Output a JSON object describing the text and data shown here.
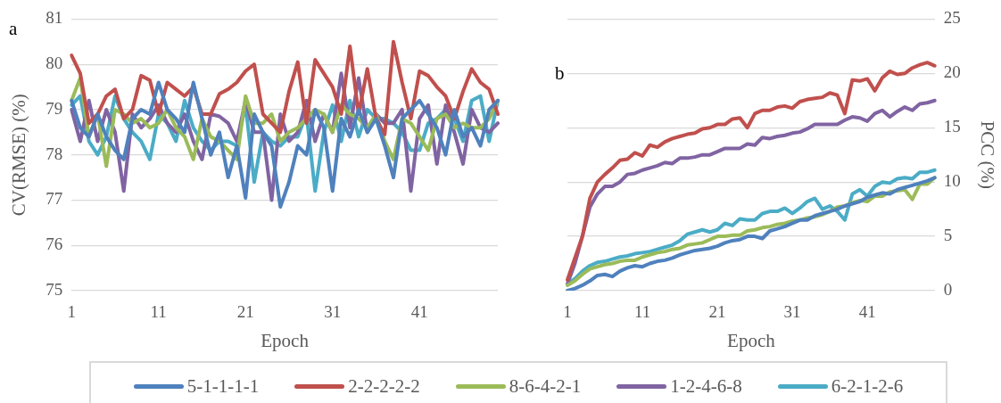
{
  "chart_data": [
    {
      "type": "line",
      "title": "a",
      "xlabel": "Epoch",
      "ylabel": "CV(RMSE) (%)",
      "categories": [
        "1",
        null,
        null,
        null,
        null,
        null,
        null,
        null,
        null,
        null,
        "11",
        null,
        null,
        null,
        null,
        null,
        null,
        null,
        null,
        null,
        "21",
        null,
        null,
        null,
        null,
        null,
        null,
        null,
        null,
        null,
        "31",
        null,
        null,
        null,
        null,
        null,
        null,
        null,
        null,
        null,
        "41",
        null,
        null,
        null,
        null,
        null,
        null,
        null,
        null,
        null
      ],
      "ylim": [
        75,
        81
      ],
      "yticks": [
        75,
        76,
        77,
        78,
        79,
        80,
        81
      ],
      "grid": "y",
      "legend": "bottom",
      "marker": "none",
      "line_style": "solid",
      "series": [
        {
          "name": "5-1-1-1-1",
          "color": "#4f81bd",
          "values": [
            79.2,
            78.6,
            78.4,
            78.9,
            78.4,
            78.1,
            77.9,
            78.8,
            79.0,
            78.9,
            79.6,
            79.0,
            78.8,
            78.5,
            79.6,
            78.8,
            78.0,
            78.5,
            77.5,
            78.2,
            77.05,
            78.9,
            78.5,
            78.2,
            76.85,
            77.4,
            78.2,
            78.0,
            79.0,
            78.6,
            77.2,
            78.8,
            78.4,
            79.0,
            78.5,
            78.8,
            78.2,
            77.5,
            78.8,
            79.0,
            79.2,
            78.9,
            78.6,
            78.0,
            79.0,
            78.4,
            78.6,
            78.2,
            79.0,
            79.2
          ]
        },
        {
          "name": "2-2-2-2-2",
          "color": "#c0504d",
          "values": [
            80.2,
            79.8,
            78.7,
            78.9,
            79.3,
            79.45,
            78.8,
            79.0,
            79.75,
            79.65,
            78.9,
            79.6,
            79.45,
            79.3,
            79.5,
            78.9,
            78.9,
            79.35,
            79.45,
            79.6,
            79.85,
            80.0,
            78.9,
            78.7,
            78.5,
            79.4,
            80.05,
            78.7,
            80.1,
            79.8,
            79.5,
            78.9,
            80.4,
            78.9,
            79.9,
            78.8,
            78.45,
            80.5,
            79.6,
            78.8,
            79.85,
            79.75,
            79.5,
            79.3,
            78.8,
            79.4,
            79.9,
            79.6,
            79.45,
            78.9
          ]
        },
        {
          "name": "8-6-4-2-1",
          "color": "#9bbb59",
          "values": [
            79.2,
            79.7,
            78.4,
            78.9,
            77.75,
            79.0,
            78.9,
            78.7,
            78.8,
            78.6,
            78.7,
            79.0,
            78.6,
            78.4,
            77.9,
            78.8,
            78.4,
            78.3,
            78.1,
            77.9,
            79.3,
            78.7,
            78.7,
            78.9,
            78.3,
            78.5,
            78.6,
            78.8,
            79.0,
            78.9,
            78.5,
            79.1,
            78.9,
            78.8,
            78.6,
            78.9,
            78.3,
            77.9,
            78.8,
            78.7,
            78.4,
            78.1,
            78.8,
            78.9,
            78.6,
            78.7,
            78.6,
            78.6,
            78.8,
            79.2
          ]
        },
        {
          "name": "1-2-4-6-8",
          "color": "#8064a2",
          "values": [
            79.0,
            78.3,
            79.2,
            78.3,
            79.0,
            78.5,
            77.2,
            78.9,
            78.6,
            78.8,
            79.1,
            78.7,
            78.5,
            78.9,
            78.3,
            77.9,
            78.9,
            78.85,
            78.7,
            78.3,
            79.2,
            78.5,
            78.5,
            77.0,
            78.9,
            78.3,
            78.5,
            79.2,
            78.3,
            78.9,
            78.5,
            79.8,
            78.6,
            79.7,
            78.5,
            78.9,
            78.7,
            78.7,
            79.0,
            77.2,
            78.8,
            79.1,
            77.8,
            79.1,
            78.5,
            77.8,
            79.0,
            78.6,
            78.5,
            78.7
          ]
        },
        {
          "name": "6-2-1-2-6",
          "color": "#4bacc6",
          "values": [
            79.1,
            79.3,
            78.3,
            78.0,
            78.4,
            79.3,
            78.8,
            78.5,
            78.3,
            77.9,
            78.9,
            78.7,
            78.3,
            79.2,
            78.6,
            78.3,
            78.1,
            78.3,
            78.3,
            78.2,
            79.1,
            77.4,
            78.5,
            78.3,
            78.2,
            78.4,
            78.4,
            78.9,
            77.2,
            78.5,
            79.1,
            78.3,
            79.2,
            78.4,
            79.0,
            78.8,
            78.8,
            78.7,
            78.5,
            78.1,
            78.1,
            78.7,
            78.8,
            79.0,
            78.8,
            78.3,
            79.2,
            79.3,
            78.3,
            79.2
          ]
        }
      ]
    },
    {
      "type": "line",
      "title": "b",
      "xlabel": "Epoch",
      "y2label": "PCC (%)",
      "categories": [
        "1",
        null,
        null,
        null,
        null,
        null,
        null,
        null,
        null,
        null,
        "11",
        null,
        null,
        null,
        null,
        null,
        null,
        null,
        null,
        null,
        "21",
        null,
        null,
        null,
        null,
        null,
        null,
        null,
        null,
        null,
        "31",
        null,
        null,
        null,
        null,
        null,
        null,
        null,
        null,
        null,
        "41",
        null,
        null,
        null,
        null,
        null,
        null,
        null,
        null,
        null
      ],
      "y2lim": [
        0,
        25
      ],
      "y2ticks": [
        0,
        5,
        10,
        15,
        20,
        25
      ],
      "grid": "y",
      "marker": "none",
      "line_style": "solid",
      "series": [
        {
          "color": "#4f81bd",
          "axis": "y2",
          "values": [
            0.0,
            0.2,
            0.5,
            0.9,
            1.4,
            1.5,
            1.3,
            1.8,
            2.1,
            2.3,
            2.2,
            2.5,
            2.7,
            2.8,
            3.0,
            3.3,
            3.5,
            3.7,
            3.8,
            3.9,
            4.1,
            4.4,
            4.6,
            4.7,
            5.0,
            5.0,
            4.8,
            5.5,
            5.7,
            5.9,
            6.2,
            6.5,
            6.5,
            6.9,
            7.1,
            7.3,
            7.5,
            7.8,
            8.0,
            8.2,
            8.6,
            8.8,
            9.0,
            8.9,
            9.3,
            9.5,
            9.7,
            9.9,
            10.1,
            10.4
          ]
        },
        {
          "color": "#c0504d",
          "axis": "y2",
          "values": [
            1.0,
            3.0,
            5.0,
            8.5,
            10.0,
            10.7,
            11.3,
            12.0,
            12.1,
            12.7,
            12.4,
            13.4,
            13.2,
            13.7,
            14.0,
            14.2,
            14.4,
            14.5,
            14.9,
            15.0,
            15.3,
            15.3,
            15.8,
            15.9,
            15.0,
            16.3,
            16.6,
            16.6,
            16.9,
            17.0,
            16.8,
            17.4,
            17.6,
            17.7,
            17.8,
            18.2,
            18.0,
            16.3,
            19.4,
            19.3,
            19.5,
            18.4,
            19.6,
            20.2,
            19.9,
            20.0,
            20.5,
            20.8,
            21.0,
            20.7
          ]
        },
        {
          "color": "#9bbb59",
          "axis": "y2",
          "values": [
            0.5,
            0.9,
            1.5,
            2.0,
            2.2,
            2.4,
            2.5,
            2.7,
            2.8,
            2.8,
            3.1,
            3.3,
            3.5,
            3.6,
            3.8,
            3.9,
            4.2,
            4.3,
            4.4,
            4.7,
            5.0,
            5.0,
            5.1,
            5.1,
            5.5,
            5.6,
            5.8,
            5.9,
            6.1,
            6.2,
            6.4,
            6.5,
            6.7,
            6.8,
            7.0,
            7.3,
            7.7,
            7.8,
            8.1,
            8.3,
            8.2,
            8.7,
            8.7,
            9.1,
            9.2,
            9.3,
            8.4,
            9.8,
            9.8,
            10.4
          ]
        },
        {
          "color": "#8064a2",
          "axis": "y2",
          "values": [
            0.6,
            2.5,
            5.0,
            7.7,
            8.9,
            9.6,
            9.6,
            10.0,
            10.7,
            10.8,
            11.1,
            11.3,
            11.5,
            11.8,
            11.7,
            12.2,
            12.2,
            12.3,
            12.5,
            12.5,
            12.8,
            13.1,
            13.1,
            13.1,
            13.5,
            13.4,
            14.1,
            14.0,
            14.2,
            14.3,
            14.5,
            14.6,
            14.9,
            15.3,
            15.3,
            15.3,
            15.3,
            15.7,
            16.0,
            15.9,
            15.6,
            16.3,
            16.6,
            16.0,
            16.5,
            16.9,
            16.6,
            17.2,
            17.3,
            17.5
          ]
        },
        {
          "color": "#4bacc6",
          "axis": "y2",
          "values": [
            0.6,
            1.1,
            1.8,
            2.3,
            2.6,
            2.7,
            2.9,
            3.1,
            3.2,
            3.4,
            3.5,
            3.6,
            3.8,
            4.0,
            4.2,
            4.6,
            5.2,
            5.4,
            5.6,
            5.4,
            5.6,
            6.2,
            6.0,
            6.6,
            6.5,
            6.5,
            7.1,
            7.3,
            7.3,
            7.6,
            7.1,
            7.6,
            8.2,
            8.5,
            7.5,
            7.8,
            7.3,
            6.5,
            8.9,
            9.3,
            8.7,
            9.6,
            10.0,
            9.9,
            10.3,
            10.4,
            10.3,
            10.9,
            10.9,
            11.1
          ]
        }
      ]
    }
  ]
}
